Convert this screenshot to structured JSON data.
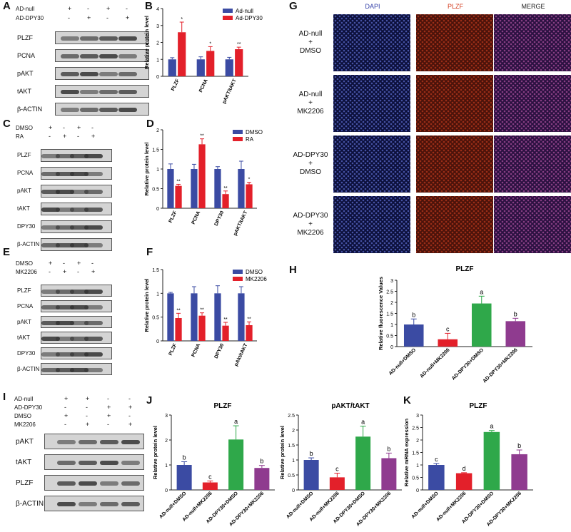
{
  "panels": {
    "A": "A",
    "B": "B",
    "C": "C",
    "D": "D",
    "E": "E",
    "F": "F",
    "G": "G",
    "H": "H",
    "I": "I",
    "J": "J",
    "K": "K"
  },
  "blotA": {
    "conds": [
      {
        "label": "AD-null",
        "signs": [
          "+",
          "-",
          "+",
          "-"
        ]
      },
      {
        "label": "AD-DPY30",
        "signs": [
          "-",
          "+",
          "-",
          "+"
        ]
      }
    ],
    "rows": [
      "PLZF",
      "PCNA",
      "pAKT",
      "tAKT",
      "β-ACTIN"
    ]
  },
  "blotC": {
    "conds": [
      {
        "label": "DMSO",
        "signs": [
          "+",
          "-",
          "+",
          "-"
        ]
      },
      {
        "label": "RA",
        "signs": [
          "-",
          "+",
          "-",
          "+"
        ]
      }
    ],
    "rows": [
      "PLZF",
      "PCNA",
      "pAKT",
      "tAKT",
      "DPY30",
      "β-ACTIN"
    ]
  },
  "blotE": {
    "conds": [
      {
        "label": "DMSO",
        "signs": [
          "+",
          "-",
          "+",
          "-"
        ]
      },
      {
        "label": "MK2206",
        "signs": [
          "-",
          "+",
          "-",
          "+"
        ]
      }
    ],
    "rows": [
      "PLZF",
      "PCNA",
      "pAKT",
      "tAKT",
      "DPY30",
      "β-ACTIN"
    ]
  },
  "blotI": {
    "conds": [
      {
        "label": "AD-null",
        "signs": [
          "+",
          "+",
          "-",
          "-"
        ]
      },
      {
        "label": "AD-DPY30",
        "signs": [
          "-",
          "-",
          "+",
          "+"
        ]
      },
      {
        "label": "DMSO",
        "signs": [
          "+",
          "-",
          "+",
          "-"
        ]
      },
      {
        "label": "MK2206",
        "signs": [
          "-",
          "+",
          "-",
          "+"
        ]
      }
    ],
    "rows": [
      "pAKT",
      "tAKT",
      "PLZF",
      "β-ACTIN"
    ]
  },
  "micro": {
    "cols": [
      "DAPI",
      "PLZF",
      "MERGE"
    ],
    "rows": [
      [
        "AD-null",
        "+",
        "DMSO"
      ],
      [
        "AD-null",
        "+",
        "MK2206"
      ],
      [
        "AD-DPY30",
        "+",
        "DMSO"
      ],
      [
        "AD-DPY30",
        "+",
        "MK2206"
      ]
    ],
    "colors": {
      "dapi": "#2a3aa8",
      "plzf": "#b0331c",
      "merge": "#7a3a9e"
    }
  },
  "colors": {
    "blue": "#3b4ba3",
    "red": "#e3202a",
    "green": "#2fa84a",
    "purple": "#8f3b8f"
  },
  "chart_data": [
    {
      "id": "B",
      "type": "bar",
      "title": "",
      "ylabel": "Relative protein level",
      "ylim": [
        0,
        4
      ],
      "yticks": [
        0,
        1,
        2,
        3,
        4
      ],
      "categories": [
        "PLZF",
        "PCNA",
        "pAKT/tAKT"
      ],
      "series": [
        {
          "name": "Ad-null",
          "color": "#3b4ba3",
          "values": [
            1.0,
            1.0,
            1.0
          ],
          "err": [
            0.1,
            0.15,
            0.12
          ]
        },
        {
          "name": "Ad-DPY30",
          "color": "#e3202a",
          "values": [
            2.6,
            1.5,
            1.6
          ],
          "err": [
            0.6,
            0.25,
            0.12
          ]
        }
      ],
      "sig": [
        [
          "*",
          "*",
          "**"
        ]
      ]
    },
    {
      "id": "D",
      "type": "bar",
      "title": "",
      "ylabel": "Relative protein level",
      "ylim": [
        0,
        2.0
      ],
      "yticks": [
        0,
        0.5,
        1.0,
        1.5,
        2.0
      ],
      "categories": [
        "PLZF",
        "PCNA",
        "DPY30",
        "pAKT/tAKT"
      ],
      "series": [
        {
          "name": "DMSO",
          "color": "#3b4ba3",
          "values": [
            1.0,
            1.0,
            1.0,
            1.0
          ],
          "err": [
            0.13,
            0.12,
            0.06,
            0.2
          ]
        },
        {
          "name": "RA",
          "color": "#e3202a",
          "values": [
            0.57,
            1.63,
            0.36,
            0.61
          ],
          "err": [
            0.04,
            0.14,
            0.08,
            0.05
          ]
        }
      ],
      "sig": [
        [
          "**",
          "**",
          "**",
          "*"
        ]
      ]
    },
    {
      "id": "F",
      "type": "bar",
      "title": "",
      "ylabel": "Relative protein level",
      "ylim": [
        0,
        1.5
      ],
      "yticks": [
        0,
        0.5,
        1.0,
        1.5
      ],
      "categories": [
        "PLZF",
        "PCNA",
        "DPY30",
        "pAkt/tAKT"
      ],
      "series": [
        {
          "name": "DMSO",
          "color": "#3b4ba3",
          "values": [
            1.0,
            1.0,
            1.0,
            1.0
          ],
          "err": [
            0.02,
            0.14,
            0.16,
            0.14
          ]
        },
        {
          "name": "MK2206",
          "color": "#e3202a",
          "values": [
            0.48,
            0.53,
            0.32,
            0.33
          ],
          "err": [
            0.1,
            0.06,
            0.07,
            0.07
          ]
        }
      ],
      "sig": [
        [
          "**",
          "**",
          "**",
          "**"
        ]
      ]
    },
    {
      "id": "H",
      "type": "bar",
      "title": "PLZF",
      "ylabel": "Relative fluorescence Values",
      "ylim": [
        0,
        3.0
      ],
      "yticks": [
        0,
        0.5,
        1.0,
        1.5,
        2.0,
        2.5,
        3.0
      ],
      "categories": [
        "AD-null+DMSO",
        "AD-null+MK2206",
        "AD-DPY30+DMSO",
        "AD-DPY30+MK2206"
      ],
      "values": [
        1.0,
        0.33,
        1.95,
        1.15
      ],
      "err": [
        0.25,
        0.27,
        0.33,
        0.13
      ],
      "letters": [
        "b",
        "c",
        "a",
        "b"
      ]
    },
    {
      "id": "J1",
      "type": "bar",
      "title": "PLZF",
      "ylabel": "Relative protein level",
      "ylim": [
        0,
        3
      ],
      "yticks": [
        0,
        1,
        2,
        3
      ],
      "categories": [
        "AD-null+DMSO",
        "AD-null+MK2206",
        "AD-DPY30+DMSO",
        "AD-DPY30+MK2206"
      ],
      "values": [
        1.0,
        0.3,
        2.02,
        0.88
      ],
      "err": [
        0.13,
        0.06,
        0.55,
        0.1
      ],
      "letters": [
        "b",
        "c",
        "a",
        "b"
      ]
    },
    {
      "id": "J2",
      "type": "bar",
      "title": "pAKT/tAKT",
      "ylabel": "Relative protein level",
      "ylim": [
        0,
        2.5
      ],
      "yticks": [
        0,
        0.5,
        1.0,
        1.5,
        2.0,
        2.5
      ],
      "categories": [
        "AD-null+DMSO",
        "AD-null+MK2206",
        "AD-DPY30+DMSO",
        "AD-DPY30+MK2206"
      ],
      "values": [
        1.0,
        0.42,
        1.78,
        1.06
      ],
      "err": [
        0.07,
        0.14,
        0.35,
        0.17
      ],
      "letters": [
        "b",
        "c",
        "a",
        "b"
      ]
    },
    {
      "id": "K",
      "type": "bar",
      "title": "PLZF",
      "ylabel": "Relative mRNA expression",
      "ylim": [
        0,
        3.0
      ],
      "yticks": [
        0,
        0.5,
        1.0,
        1.5,
        2.0,
        2.5,
        3.0
      ],
      "categories": [
        "AD-null+DMSO",
        "AD-null+MK2206",
        "AD-DPY30+DMSO",
        "AD-DPY30+MK2206"
      ],
      "values": [
        1.0,
        0.67,
        2.32,
        1.43
      ],
      "err": [
        0.06,
        0.02,
        0.06,
        0.17
      ],
      "letters": [
        "c",
        "d",
        "a",
        "b"
      ]
    }
  ]
}
